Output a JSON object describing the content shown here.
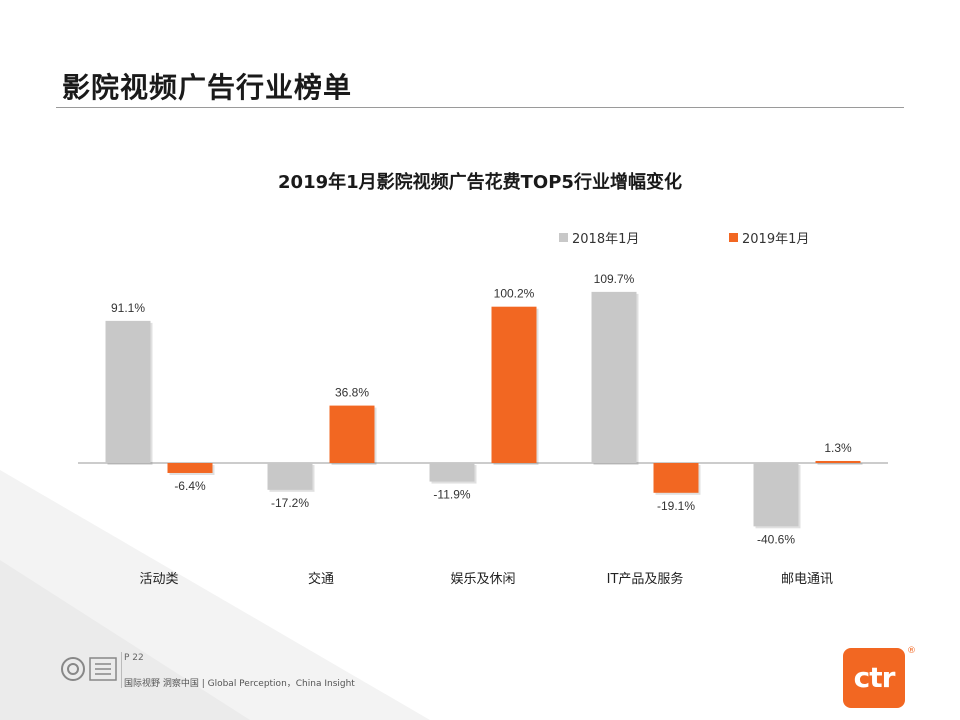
{
  "page": {
    "title": "影院视频广告行业榜单",
    "page_number": "P 22",
    "slogan": "国际视野 洞察中国 | Global Perception，China Insight",
    "brand": "ctr",
    "reg_mark": "®",
    "colors": {
      "accent": "#f26722",
      "series_2018": "#c8c8c8",
      "series_2019": "#f26722"
    }
  },
  "chart_data": {
    "type": "bar",
    "title": "2019年1月影院视频广告花费TOP5行业增幅变化",
    "categories": [
      "活动类",
      "交通",
      "娱乐及休闲",
      "IT产品及服务",
      "邮电通讯"
    ],
    "series": [
      {
        "name": "2018年1月",
        "values": [
          91.1,
          -17.2,
          -11.9,
          109.7,
          -40.6
        ],
        "labels": [
          "91.1%",
          "-17.2%",
          "-11.9%",
          "109.7%",
          "-40.6%"
        ]
      },
      {
        "name": "2019年1月",
        "values": [
          -6.4,
          36.8,
          100.2,
          -19.1,
          1.3
        ],
        "labels": [
          "-6.4%",
          "36.8%",
          "100.2%",
          "-19.1%",
          "1.3%"
        ]
      }
    ],
    "ylim": [
      -45,
      115
    ],
    "legend": "top-right",
    "xlabel": "",
    "ylabel": "",
    "grid": false
  }
}
